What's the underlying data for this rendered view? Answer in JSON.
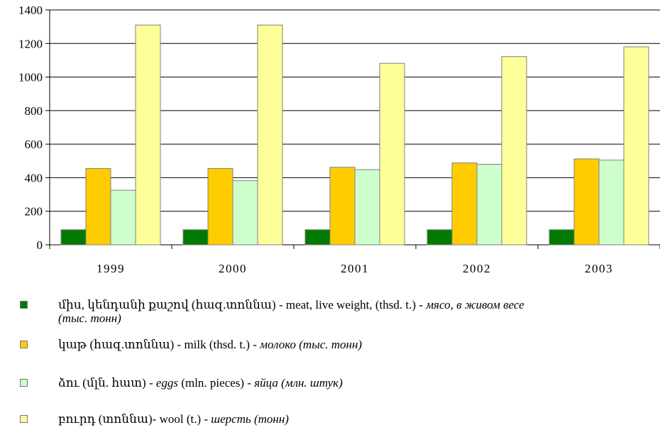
{
  "chart_data": {
    "type": "bar",
    "categories": [
      "1999",
      "2000",
      "2001",
      "2002",
      "2003"
    ],
    "ylim": [
      0,
      1400
    ],
    "yticks": [
      "0",
      "200",
      "400",
      "600",
      "800",
      "1000",
      "1200",
      "1400"
    ],
    "grid": true,
    "legend_placement": "bottom",
    "series": [
      {
        "name": "միս, կենդանի քաշով (հազ.տոննա) - meat, live weight, (thsd. t.) - мясо, в живом весе (тыс. тонн)",
        "color": "#007a00",
        "values": [
          90,
          90,
          90,
          90,
          90
        ]
      },
      {
        "name": "կաթ (հազ.տոննա) - milk (thsd. t.) - молоко (тыс. тонн)",
        "color": "#ffcc00",
        "values": [
          455,
          455,
          462,
          488,
          512
        ]
      },
      {
        "name": "ձու (մլն. հատ) - eggs (mln. pieces) - яйца (млн. штук)",
        "color": "#ccffcc",
        "values": [
          325,
          382,
          448,
          480,
          505
        ]
      },
      {
        "name": "բուրդ (տոննա)- wool (t.) - шерсть (тонн)",
        "color": "#ffff99",
        "values": [
          1310,
          1310,
          1082,
          1122,
          1180
        ]
      }
    ]
  },
  "legend": [
    {
      "am": "միս, կենդանի քաշով (հազ.տոննա)",
      "en": " - meat, live weight, (thsd. t.) - ",
      "ru": "мясо, в живом весе",
      "ru2": "(тыс. тонн)"
    },
    {
      "am": "կաթ (հազ.տոննա)",
      "en": " - milk (thsd. t.) - ",
      "ru": "молоко (тыс. тонн)",
      "ru2": ""
    },
    {
      "am": "ձու (մլն. հատ) - ",
      "en": "eggs",
      "ru": " (mln. pieces) - ",
      "ru2": "яйца (млн. штук)"
    },
    {
      "am": "բուրդ (տոննա)",
      "en": "- wool (t.) - ",
      "ru": "шерсть (тонн)",
      "ru2": ""
    }
  ]
}
